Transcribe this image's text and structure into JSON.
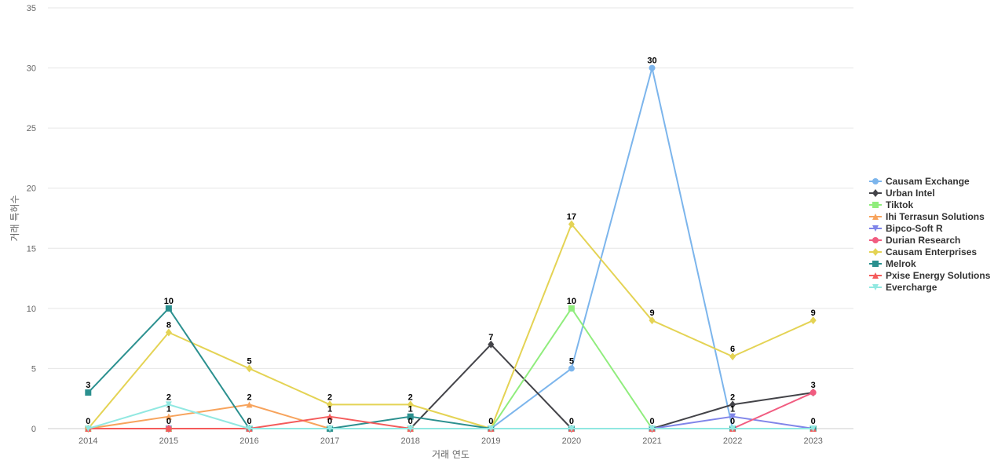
{
  "chart_data": {
    "type": "line",
    "xlabel": "거래 연도",
    "ylabel": "거래 특허수",
    "categories": [
      "2014",
      "2015",
      "2016",
      "2017",
      "2018",
      "2019",
      "2020",
      "2021",
      "2022",
      "2023"
    ],
    "ylim": [
      0,
      35
    ],
    "yticks": [
      0,
      5,
      10,
      15,
      20,
      25,
      30,
      35
    ],
    "grid": true,
    "legend_position": "right",
    "series": [
      {
        "name": "Causam Exchange",
        "color": "#7cb5ec",
        "marker": "circle",
        "values": [
          0,
          0,
          0,
          0,
          0,
          0,
          5,
          30,
          0,
          0
        ],
        "labels": [
          null,
          null,
          null,
          null,
          null,
          null,
          5,
          30,
          null,
          null
        ]
      },
      {
        "name": "Urban Intel",
        "color": "#434348",
        "marker": "diamond",
        "values": [
          0,
          0,
          0,
          0,
          0,
          7,
          0,
          0,
          2,
          3
        ],
        "labels": [
          null,
          null,
          null,
          null,
          null,
          7,
          0,
          0,
          2,
          null
        ]
      },
      {
        "name": "Tiktok",
        "color": "#90ed7d",
        "marker": "square",
        "values": [
          0,
          0,
          0,
          0,
          0,
          0,
          10,
          0,
          0,
          0
        ],
        "labels": [
          null,
          null,
          null,
          null,
          null,
          null,
          10,
          null,
          null,
          null
        ]
      },
      {
        "name": "Ihi Terrasun Solutions",
        "color": "#f7a35c",
        "marker": "triangle",
        "values": [
          0,
          1,
          2,
          0,
          0,
          0,
          0,
          0,
          0,
          0
        ],
        "labels": [
          0,
          1,
          2,
          0,
          null,
          null,
          null,
          null,
          null,
          null
        ]
      },
      {
        "name": "Bipco-Soft R",
        "color": "#8085e9",
        "marker": "triangle-down",
        "values": [
          0,
          0,
          0,
          0,
          0,
          0,
          0,
          0,
          1,
          0
        ],
        "labels": [
          null,
          null,
          null,
          null,
          null,
          null,
          null,
          null,
          1,
          0
        ]
      },
      {
        "name": "Durian Research",
        "color": "#f15c80",
        "marker": "circle",
        "values": [
          0,
          0,
          0,
          0,
          0,
          0,
          0,
          0,
          0,
          3
        ],
        "labels": [
          null,
          null,
          null,
          null,
          null,
          null,
          null,
          null,
          0,
          3
        ]
      },
      {
        "name": "Causam Enterprises",
        "color": "#e4d354",
        "marker": "diamond",
        "values": [
          0,
          8,
          5,
          2,
          2,
          0,
          17,
          9,
          6,
          9
        ],
        "labels": [
          null,
          8,
          5,
          2,
          2,
          0,
          17,
          9,
          6,
          9
        ]
      },
      {
        "name": "Melrok",
        "color": "#2b908f",
        "marker": "square",
        "values": [
          3,
          10,
          0,
          0,
          1,
          0,
          0,
          0,
          0,
          0
        ],
        "labels": [
          3,
          10,
          null,
          null,
          1,
          null,
          null,
          null,
          null,
          null
        ]
      },
      {
        "name": "Pxise Energy Solutions",
        "color": "#f45b5b",
        "marker": "triangle",
        "values": [
          0,
          0,
          0,
          1,
          0,
          0,
          0,
          0,
          0,
          0
        ],
        "labels": [
          null,
          0,
          0,
          1,
          0,
          null,
          null,
          null,
          null,
          null
        ]
      },
      {
        "name": "Evercharge",
        "color": "#91e8e1",
        "marker": "triangle-down",
        "values": [
          0,
          2,
          0,
          0,
          0,
          0,
          0,
          0,
          0,
          0
        ],
        "labels": [
          null,
          2,
          null,
          null,
          null,
          null,
          null,
          null,
          null,
          null
        ]
      }
    ]
  }
}
